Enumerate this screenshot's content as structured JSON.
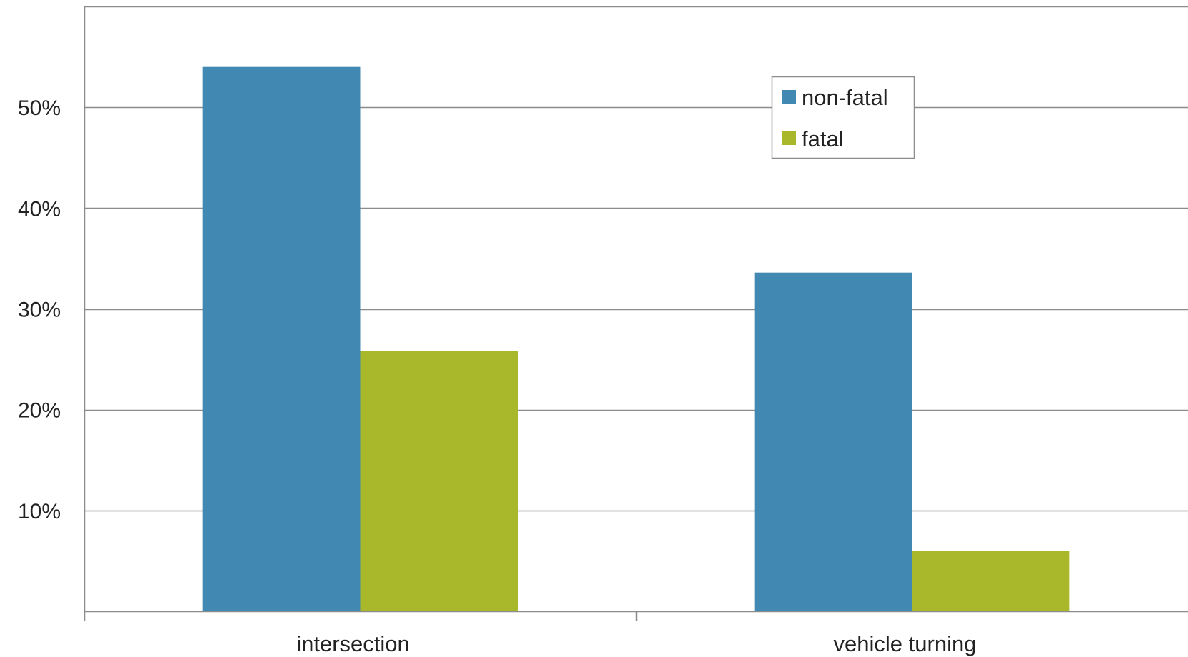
{
  "chart_data": {
    "type": "bar",
    "title": "",
    "xlabel": "",
    "ylabel": "",
    "categories": [
      "intersection",
      "vehicle turning"
    ],
    "series": [
      {
        "name": "non-fatal",
        "values": [
          54.0,
          33.6
        ],
        "color": "#4189b3"
      },
      {
        "name": "fatal",
        "values": [
          25.8,
          6.0
        ],
        "color": "#a8b82a"
      }
    ],
    "ylim": [
      0,
      60
    ],
    "yticks": [
      {
        "value": 10,
        "label": "10%"
      },
      {
        "value": 20,
        "label": "20%"
      },
      {
        "value": 30,
        "label": "30%"
      },
      {
        "value": 40,
        "label": "40%"
      },
      {
        "value": 50,
        "label": "50%"
      }
    ],
    "grid": true,
    "legend_position": "top-right"
  },
  "colors": {
    "gridline": "#8c8c8c",
    "axis": "#8c8c8c",
    "text": "#222222"
  }
}
